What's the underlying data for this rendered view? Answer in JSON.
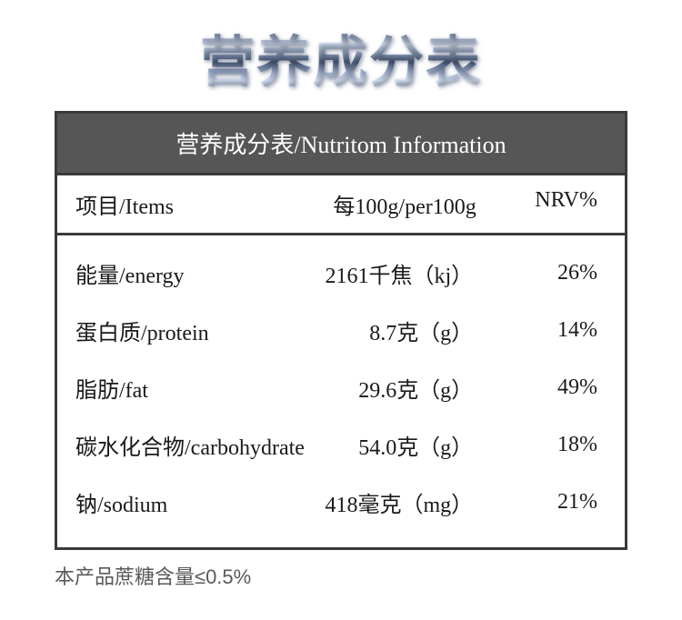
{
  "title": "营养成分表",
  "table": {
    "header": "营养成分表/Nutritom Information",
    "columns": {
      "items": "项目/Items",
      "per100g": "每100g/per100g",
      "nrv": "NRV%"
    },
    "rows": [
      {
        "item": "能量/energy",
        "amount": "2161千焦（kj）",
        "nrv": "26%"
      },
      {
        "item": "蛋白质/protein",
        "amount": "8.7克（g）",
        "nrv": "14%"
      },
      {
        "item": "脂肪/fat",
        "amount": "29.6克（g）",
        "nrv": "49%"
      },
      {
        "item": "碳水化合物/carbohydrate",
        "amount": "54.0克（g）",
        "nrv": "18%"
      },
      {
        "item": "钠/sodium",
        "amount": "418毫克（mg）",
        "nrv": "21%"
      }
    ]
  },
  "footnote": "本产品蔗糖含量≤0.5%",
  "style": {
    "background_color": "#ffffff",
    "border_color": "#3a3a3a",
    "header_bg": "#565656",
    "header_color": "#ffffff",
    "text_color": "#1a1a1a",
    "footnote_color": "#5a5a5a",
    "title_fontsize": 60,
    "header_fontsize": 26,
    "body_fontsize": 24,
    "footnote_fontsize": 22
  }
}
